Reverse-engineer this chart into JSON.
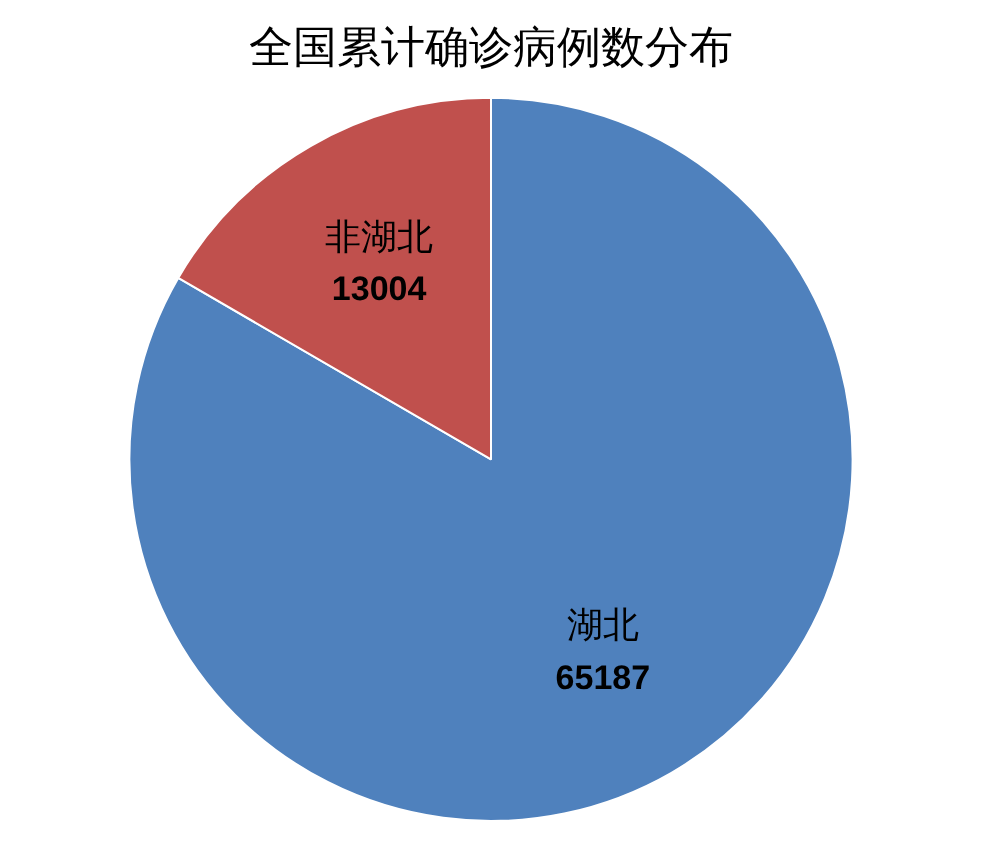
{
  "chart_data": {
    "type": "pie",
    "title": "全国累计确诊病例数分布",
    "categories": [
      "湖北",
      "非湖北"
    ],
    "values": [
      65187,
      13004
    ],
    "colors": [
      "#4f81bd",
      "#c0504d"
    ],
    "data_labels": true,
    "legend": false
  }
}
